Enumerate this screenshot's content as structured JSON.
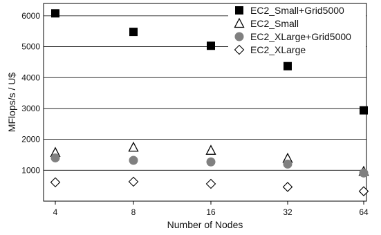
{
  "chart_data": {
    "type": "scatter",
    "title": "",
    "xlabel": "Number of Nodes",
    "ylabel": "MFlops/s  / U$",
    "categories": [
      "4",
      "8",
      "16",
      "32",
      "64"
    ],
    "ylim": [
      0,
      6400
    ],
    "yticks": [
      1000,
      2000,
      3000,
      4000,
      5000,
      6000
    ],
    "grid": "horizontal",
    "legend_position": "top-right",
    "series": [
      {
        "name": "EC2_Small+Grid5000",
        "marker": "filled-square",
        "color": "#000000",
        "values": [
          6080,
          5480,
          5030,
          4370,
          2940
        ]
      },
      {
        "name": "EC2_Small",
        "marker": "open-triangle",
        "color": "#000000",
        "values": [
          1570,
          1740,
          1640,
          1380,
          960
        ]
      },
      {
        "name": "EC2_XLarge+Grid5000",
        "marker": "filled-circle",
        "color": "#808080",
        "values": [
          1400,
          1320,
          1270,
          1200,
          910
        ]
      },
      {
        "name": "EC2_XLarge",
        "marker": "open-diamond",
        "color": "#000000",
        "values": [
          610,
          630,
          560,
          460,
          320
        ]
      }
    ]
  }
}
